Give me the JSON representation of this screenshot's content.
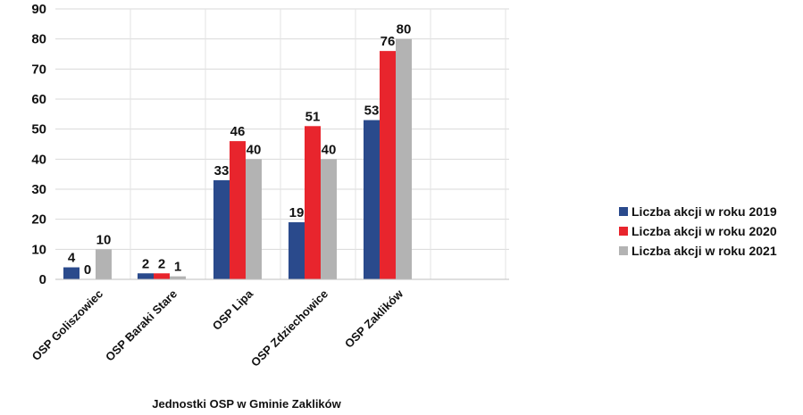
{
  "chart_data": {
    "type": "bar",
    "categories": [
      "OSP Goliszowiec",
      "OSP Baraki Stare",
      "OSP Lipa",
      "OSP Zdziechowice",
      "OSP Zaklików"
    ],
    "series": [
      {
        "name": "Liczba akcji w roku 2019",
        "values": [
          4,
          2,
          33,
          19,
          53
        ],
        "color": "#2a4a8c"
      },
      {
        "name": "Liczba akcji w roku 2020",
        "values": [
          0,
          2,
          46,
          51,
          76
        ],
        "color": "#e8252d"
      },
      {
        "name": "Liczba akcji w roku 2021",
        "values": [
          10,
          1,
          40,
          40,
          80
        ],
        "color": "#b3b3b3"
      }
    ],
    "title": "",
    "xlabel": "Jednostki OSP w Gminie Zaklików",
    "ylabel": "",
    "ylim": [
      0,
      90
    ],
    "yticks": [
      0,
      10,
      20,
      30,
      40,
      50,
      60,
      70,
      80,
      90
    ],
    "grid": true,
    "legend_position": "right"
  }
}
